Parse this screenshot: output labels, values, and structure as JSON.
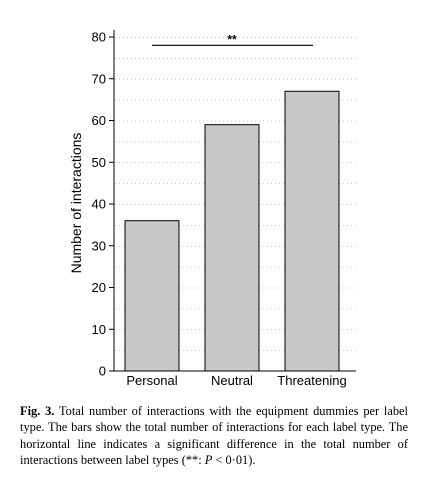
{
  "chart_data": {
    "type": "bar",
    "categories": [
      "Personal",
      "Neutral",
      "Threatening"
    ],
    "values": [
      36,
      59,
      67
    ],
    "title": "",
    "xlabel": "",
    "ylabel": "Number of interactions",
    "ylim": [
      0,
      80
    ],
    "yticks": [
      0,
      10,
      20,
      30,
      40,
      50,
      60,
      70,
      80
    ],
    "ytick_labels": [
      "0",
      "10",
      "20",
      "30",
      "40",
      "50",
      "60",
      "70",
      "80"
    ],
    "grid": "horizontal dotted",
    "bar_color": "#c8c8c8",
    "annotations": [
      {
        "type": "significance-bracket",
        "from": "Personal",
        "to": "Threatening",
        "y": 78,
        "label": "**"
      }
    ]
  },
  "caption": {
    "label": "Fig. 3.",
    "text_before_p": " Total number of interactions with the equipment dummies per label type. The bars show the total number of interactions for each label type. The horizontal line indicates a significant difference in the total number of interactions between label types (**: ",
    "p_symbol": "P",
    "text_after_p": " < 0·01)."
  }
}
